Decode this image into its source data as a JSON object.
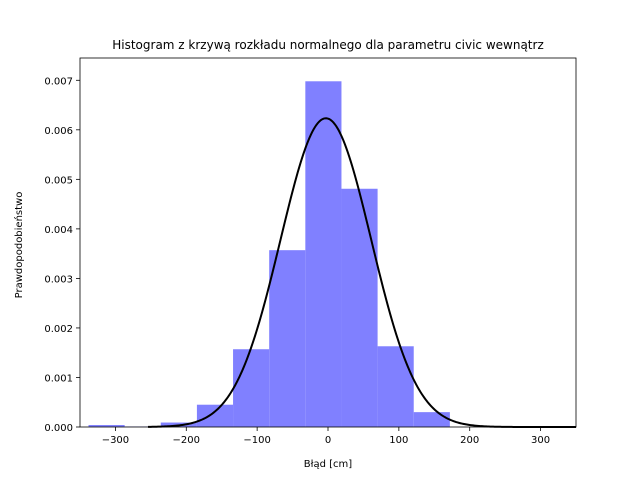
{
  "chart_data": {
    "type": "bar",
    "title": "Histogram z krzywą rozkładu normalnego dla parametru civic wewnątrz",
    "xlabel": "Błąd [cm]",
    "ylabel": "Prawdopodobieństwo",
    "xlim": [
      -350,
      350
    ],
    "ylim": [
      0,
      0.00745
    ],
    "xticks": [
      -300,
      -200,
      -100,
      0,
      100,
      200,
      300
    ],
    "yticks": [
      0.0,
      0.001,
      0.002,
      0.003,
      0.004,
      0.005,
      0.006,
      0.007
    ],
    "xtick_labels": [
      "−300",
      "−200",
      "−100",
      "0",
      "100",
      "200",
      "300"
    ],
    "ytick_labels": [
      "0.000",
      "0.001",
      "0.002",
      "0.003",
      "0.004",
      "0.005",
      "0.006",
      "0.007"
    ],
    "grid": false,
    "bins": {
      "edges": [
        -338,
        -287,
        -236,
        -185,
        -134,
        -83,
        -32,
        19,
        70,
        121,
        172
      ],
      "values": [
        4e-05,
        1e-05,
        9e-05,
        0.00045,
        0.00157,
        0.00357,
        0.00698,
        0.00481,
        0.00163,
        0.0003
      ],
      "color": "#8080ff"
    },
    "curve": {
      "type": "normal-pdf",
      "mean": -3,
      "std": 64,
      "x_range": [
        -254,
        350
      ],
      "color": "#000000"
    }
  }
}
